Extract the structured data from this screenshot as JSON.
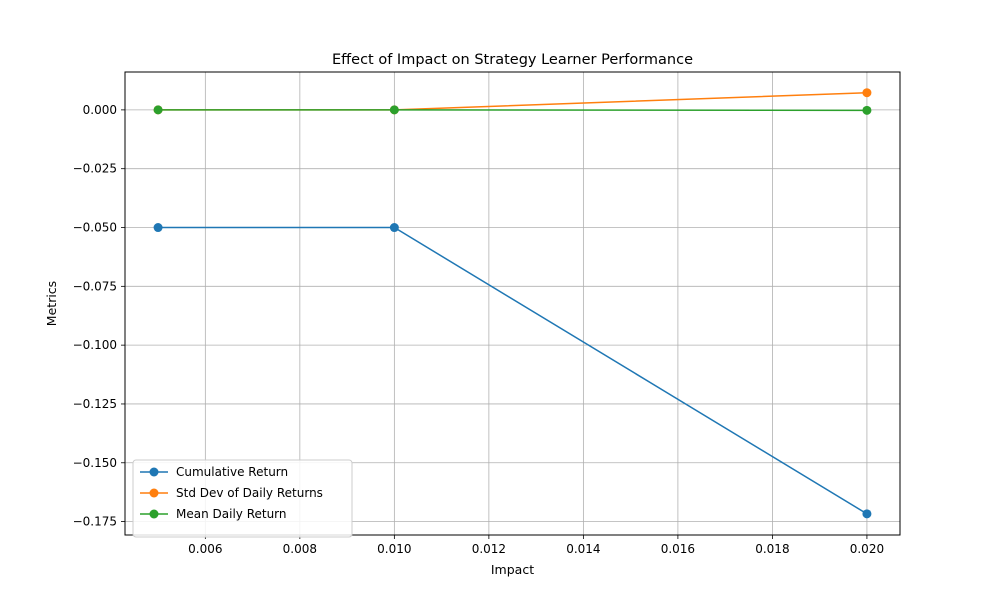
{
  "chart_data": {
    "type": "line",
    "title": "Effect of Impact on Strategy Learner Performance",
    "xlabel": "Impact",
    "ylabel": "Metrics",
    "x": [
      0.005,
      0.01,
      0.02
    ],
    "xlim": [
      0.0043,
      0.0207
    ],
    "ylim": [
      -0.1807,
      0.0161
    ],
    "xticks": [
      0.006,
      0.008,
      0.01,
      0.012,
      0.014,
      0.016,
      0.018,
      0.02
    ],
    "xtick_labels": [
      "0.006",
      "0.008",
      "0.010",
      "0.012",
      "0.014",
      "0.016",
      "0.018",
      "0.020"
    ],
    "yticks": [
      0.0,
      -0.025,
      -0.05,
      -0.075,
      -0.1,
      -0.125,
      -0.15,
      -0.175
    ],
    "ytick_labels": [
      "0.000",
      "−0.025",
      "−0.050",
      "−0.075",
      "−0.100",
      "−0.125",
      "−0.150",
      "−0.175"
    ],
    "grid": true,
    "legend_position": "lower-left",
    "series": [
      {
        "name": "Cumulative Return",
        "color": "#1f77b4",
        "values": [
          -0.05,
          -0.05,
          -0.1717
        ]
      },
      {
        "name": "Std Dev of Daily Returns",
        "color": "#ff7f0e",
        "values": [
          0.0,
          0.0,
          0.0073
        ]
      },
      {
        "name": "Mean Daily Return",
        "color": "#2ca02c",
        "values": [
          0.0,
          0.0,
          -0.0002
        ]
      }
    ]
  }
}
